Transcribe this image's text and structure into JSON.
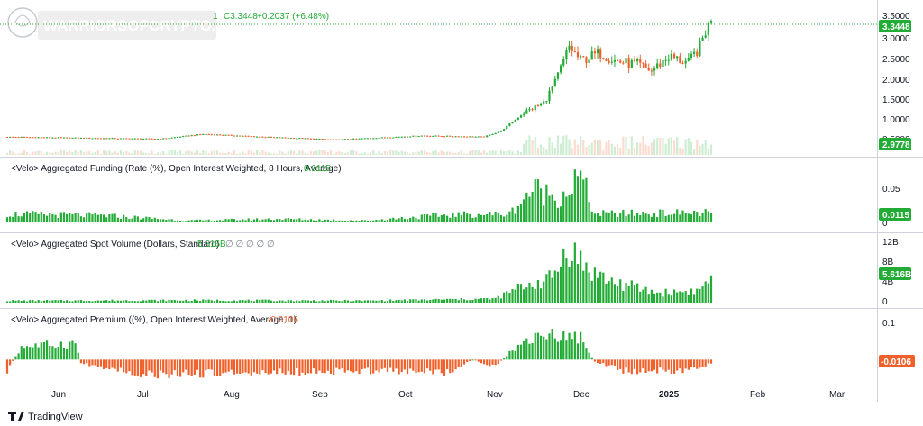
{
  "watermark": {
    "text": "WARRIORSOFCRYPTO.COM"
  },
  "price_header": {
    "prefix": "1",
    "close": "C3.3448",
    "change": "+0.2037 (+6.48%)"
  },
  "panes": {
    "funding": {
      "title": "<Velo> Aggregated Funding (Rate (%), Open Interest Weighted, 8 Hours, Average)",
      "value": "0.0115"
    },
    "spot": {
      "title": "<Velo> Aggregated Spot Volume (Dollars, Standard)",
      "value": "5.616B",
      "extra": "∅ ∅ ∅ ∅ ∅"
    },
    "premium": {
      "title": "<Velo> Aggregated Premium ((%), Open Interest Weighted, Average, 1)",
      "value": "-0.0106"
    }
  },
  "price_axis": {
    "ticks": [
      "3.5000",
      "3.0000",
      "2.5000",
      "2.0000",
      "1.5000",
      "1.0000",
      "0.5000"
    ],
    "last_price": "3.3448",
    "volume_tag": "2.9778"
  },
  "funding_axis": {
    "ticks": [
      "0.05",
      "0"
    ],
    "tag": "0.0115"
  },
  "spot_axis": {
    "ticks": [
      "12B",
      "8B",
      "4B",
      "0"
    ],
    "tag": "5.616B"
  },
  "premium_axis": {
    "ticks": [
      "0.1"
    ],
    "tag": "-0.0106"
  },
  "time_axis": {
    "labels": [
      "Jun",
      "Jul",
      "Aug",
      "Sep",
      "Oct",
      "Nov",
      "Dec",
      "2025",
      "Feb",
      "Mar"
    ]
  },
  "branding": {
    "text": "TradingView"
  },
  "colors": {
    "up": "#22ab35",
    "down": "#f0602a",
    "ref_line": "#22ab35",
    "axis_tag_red": "#f0602a"
  },
  "chart_data": {
    "type": "candlestick",
    "x_range": [
      "2024-05-17",
      "2025-01-20"
    ],
    "price": {
      "ylim": [
        0,
        3.55
      ],
      "anchors": [
        [
          "2024-05-17",
          0.45
        ],
        [
          "2024-06-15",
          0.42
        ],
        [
          "2024-07-10",
          0.4
        ],
        [
          "2024-07-25",
          0.52
        ],
        [
          "2024-08-15",
          0.45
        ],
        [
          "2024-09-10",
          0.38
        ],
        [
          "2024-10-10",
          0.48
        ],
        [
          "2024-11-01",
          0.45
        ],
        [
          "2024-11-07",
          0.6
        ],
        [
          "2024-11-15",
          1.05
        ],
        [
          "2024-11-22",
          1.3
        ],
        [
          "2024-11-26",
          1.8
        ],
        [
          "2024-12-01",
          2.7
        ],
        [
          "2024-12-05",
          2.35
        ],
        [
          "2024-12-12",
          2.55
        ],
        [
          "2024-12-17",
          2.35
        ],
        [
          "2024-12-25",
          2.25
        ],
        [
          "2024-12-30",
          2.1
        ],
        [
          "2025-01-05",
          2.45
        ],
        [
          "2025-01-12",
          2.3
        ],
        [
          "2025-01-16",
          2.7
        ],
        [
          "2025-01-18",
          3.1
        ],
        [
          "2025-01-20",
          3.3448
        ]
      ]
    },
    "funding": {
      "ylim": [
        -0.01,
        0.07
      ],
      "anchors": [
        [
          "2024-05-17",
          0.01
        ],
        [
          "2024-06-20",
          0.008
        ],
        [
          "2024-07-20",
          0.002
        ],
        [
          "2024-08-20",
          0.004
        ],
        [
          "2024-09-20",
          0.002
        ],
        [
          "2024-10-20",
          0.009
        ],
        [
          "2024-11-10",
          0.01
        ],
        [
          "2024-11-18",
          0.04
        ],
        [
          "2024-11-28",
          0.03
        ],
        [
          "2024-12-05",
          0.055
        ],
        [
          "2024-12-10",
          0.01
        ],
        [
          "2025-01-20",
          0.0115
        ]
      ]
    },
    "spot_volume": {
      "ylim": [
        0,
        13
      ],
      "anchors": [
        [
          "2024-05-17",
          0.4
        ],
        [
          "2024-07-20",
          0.5
        ],
        [
          "2024-09-20",
          0.4
        ],
        [
          "2024-11-05",
          0.8
        ],
        [
          "2024-11-15",
          3.5
        ],
        [
          "2024-11-25",
          5.0
        ],
        [
          "2024-12-01",
          12.0
        ],
        [
          "2024-12-06",
          7.5
        ],
        [
          "2024-12-15",
          4.5
        ],
        [
          "2025-01-01",
          2.0
        ],
        [
          "2025-01-16",
          2.5
        ],
        [
          "2025-01-20",
          5.616
        ]
      ]
    },
    "premium": {
      "ylim": [
        -0.06,
        0.12
      ],
      "anchors": [
        [
          "2024-05-17",
          -0.03
        ],
        [
          "2024-05-22",
          0.035
        ],
        [
          "2024-06-10",
          0.045
        ],
        [
          "2024-06-12",
          -0.01
        ],
        [
          "2024-07-05",
          -0.04
        ],
        [
          "2024-08-15",
          -0.035
        ],
        [
          "2024-09-20",
          -0.03
        ],
        [
          "2024-10-20",
          -0.035
        ],
        [
          "2024-10-28",
          0.0
        ],
        [
          "2024-11-05",
          -0.02
        ],
        [
          "2024-11-10",
          0.02
        ],
        [
          "2024-11-20",
          0.07
        ],
        [
          "2024-12-05",
          0.06
        ],
        [
          "2024-12-10",
          -0.005
        ],
        [
          "2024-12-20",
          -0.03
        ],
        [
          "2025-01-10",
          -0.03
        ],
        [
          "2025-01-20",
          -0.0106
        ]
      ]
    }
  }
}
